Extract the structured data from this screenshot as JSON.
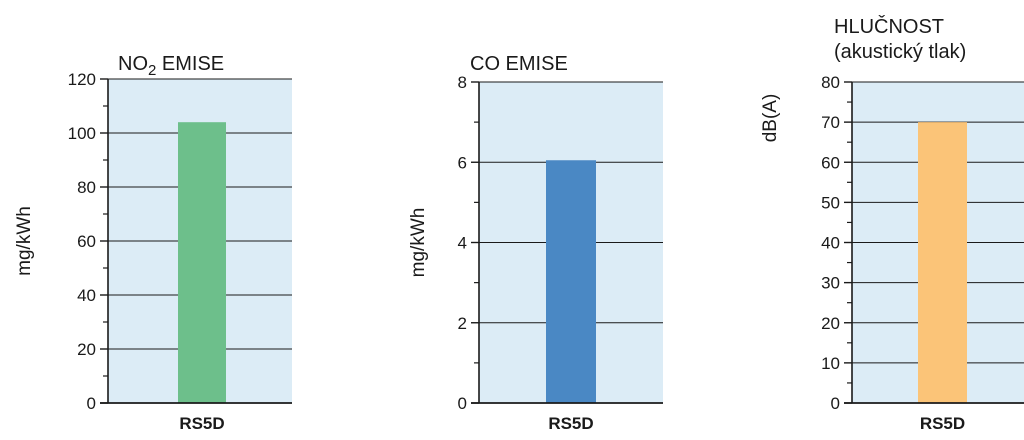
{
  "chart_data": [
    {
      "type": "bar",
      "title": "NO2 EMISE",
      "title_main": "NO",
      "title_sub": "2",
      "title_rest": " EMISE",
      "title_line2": "",
      "ylabel": "mg/kWh",
      "categories": [
        "RS5D"
      ],
      "values": [
        104
      ],
      "ylim": [
        0,
        120
      ],
      "yticks": [
        "0",
        "20",
        "40",
        "60",
        "80",
        "100",
        "120"
      ],
      "minor_ticks": true,
      "grid": true,
      "bar_color": "#6dbf8b",
      "plot_bg": "#dcecf6"
    },
    {
      "type": "bar",
      "title": "CO EMISE",
      "title_main": "CO EMISE",
      "title_sub": "",
      "title_rest": "",
      "title_line2": "",
      "ylabel": "mg/kWh",
      "categories": [
        "RS5D"
      ],
      "values": [
        6.05
      ],
      "ylim": [
        0,
        8
      ],
      "yticks": [
        "0",
        "2",
        "4",
        "6",
        "8"
      ],
      "minor_ticks": true,
      "grid": true,
      "bar_color": "#4a88c4",
      "plot_bg": "#dcecf6"
    },
    {
      "type": "bar",
      "title": "HLUČNOST (akustický tlak)",
      "title_main": "HLUČNOST",
      "title_sub": "",
      "title_rest": "",
      "title_line2": "(akustický tlak)",
      "ylabel": "dB(A)",
      "categories": [
        "RS5D"
      ],
      "values": [
        70
      ],
      "ylim": [
        0,
        80
      ],
      "yticks": [
        "0",
        "10",
        "20",
        "30",
        "40",
        "50",
        "60",
        "70",
        "80"
      ],
      "minor_ticks": true,
      "grid": true,
      "bar_color": "#fbc478",
      "plot_bg": "#dcecf6"
    }
  ]
}
